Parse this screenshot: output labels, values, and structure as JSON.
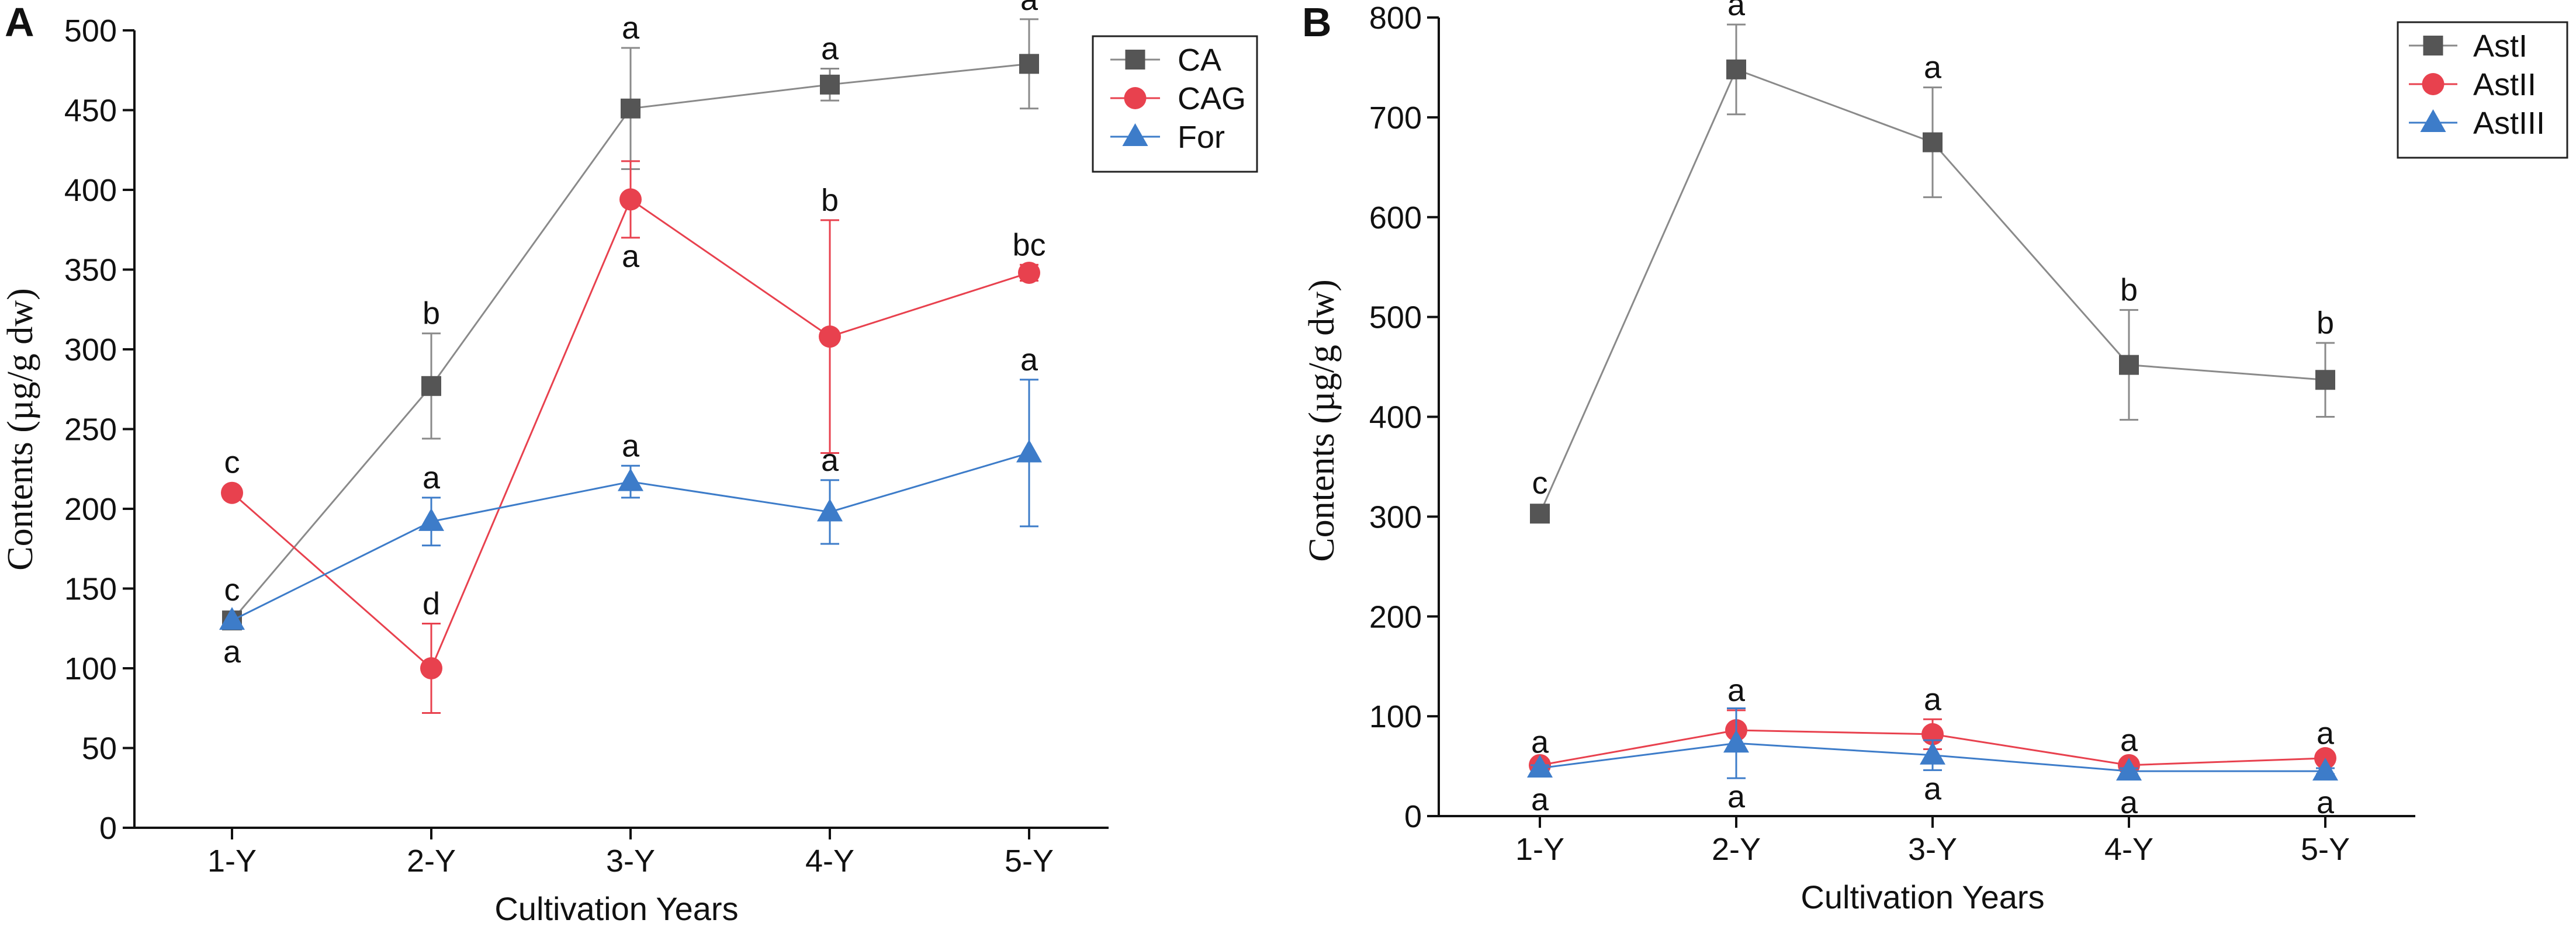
{
  "chart_data": [
    {
      "type": "line",
      "panel_label": "A",
      "title": "",
      "xlabel": "Cultivation  Years",
      "ylabel": "Contents (µg/g dw)",
      "categories": [
        "1-Y",
        "2-Y",
        "3-Y",
        "4-Y",
        "5-Y"
      ],
      "ylim": [
        0,
        500
      ],
      "yticks": [
        0,
        50,
        100,
        150,
        200,
        250,
        300,
        350,
        400,
        450,
        500
      ],
      "legend_position": "top-right",
      "series": [
        {
          "name": "CA",
          "marker": "square",
          "color": "#555555",
          "line_color": "#8a8a8a",
          "values": [
            130,
            277,
            451,
            466,
            479
          ],
          "errors": [
            0,
            33,
            38,
            10,
            28
          ],
          "letters": [
            "c",
            "b",
            "a",
            "a",
            "a"
          ],
          "letter_side": [
            "above",
            "above",
            "above",
            "above",
            "above"
          ]
        },
        {
          "name": "CAG",
          "marker": "circle",
          "color": "#e8414e",
          "line_color": "#e8414e",
          "values": [
            210,
            100,
            394,
            308,
            348
          ],
          "errors": [
            0,
            28,
            24,
            73,
            5
          ],
          "letters": [
            "c",
            "d",
            "a",
            "b",
            "bc"
          ],
          "letter_side": [
            "above",
            "above",
            "below",
            "above",
            "above"
          ]
        },
        {
          "name": "For",
          "marker": "triangle",
          "color": "#3d7cc9",
          "line_color": "#3d7cc9",
          "values": [
            130,
            192,
            217,
            198,
            235
          ],
          "errors": [
            0,
            15,
            10,
            20,
            46
          ],
          "letters": [
            "a",
            "a",
            "a",
            "a",
            "a"
          ],
          "letter_side": [
            "below",
            "above",
            "above",
            "above",
            "above"
          ]
        }
      ]
    },
    {
      "type": "line",
      "panel_label": "B",
      "title": "",
      "xlabel": "Cultivation Years",
      "ylabel": "Contents (µg/g dw)",
      "categories": [
        "1-Y",
        "2-Y",
        "3-Y",
        "4-Y",
        "5-Y"
      ],
      "ylim": [
        0,
        800
      ],
      "yticks": [
        0,
        100,
        200,
        300,
        400,
        500,
        600,
        700,
        800
      ],
      "legend_position": "top-right",
      "series": [
        {
          "name": "AstI",
          "marker": "square",
          "color": "#555555",
          "line_color": "#8a8a8a",
          "values": [
            303,
            748,
            675,
            452,
            437
          ],
          "errors": [
            0,
            45,
            55,
            55,
            37
          ],
          "letters": [
            "c",
            "a",
            "a",
            "b",
            "b"
          ],
          "letter_side": [
            "above",
            "above",
            "above",
            "above",
            "above"
          ]
        },
        {
          "name": "AstII",
          "marker": "circle",
          "color": "#e8414e",
          "line_color": "#e8414e",
          "values": [
            51,
            86,
            82,
            51,
            58
          ],
          "errors": [
            3,
            20,
            15,
            5,
            5
          ],
          "letters": [
            "a",
            "a",
            "a",
            "a",
            "a"
          ],
          "letter_side": [
            "above",
            "above",
            "above",
            "above",
            "above"
          ]
        },
        {
          "name": "AstIII",
          "marker": "triangle",
          "color": "#3d7cc9",
          "line_color": "#3d7cc9",
          "values": [
            48,
            73,
            61,
            45,
            45
          ],
          "errors": [
            3,
            35,
            15,
            3,
            3
          ],
          "letters": [
            "a",
            "a",
            "a",
            "a",
            "a"
          ],
          "letter_side": [
            "below",
            "below",
            "below",
            "below",
            "below"
          ]
        }
      ]
    }
  ]
}
